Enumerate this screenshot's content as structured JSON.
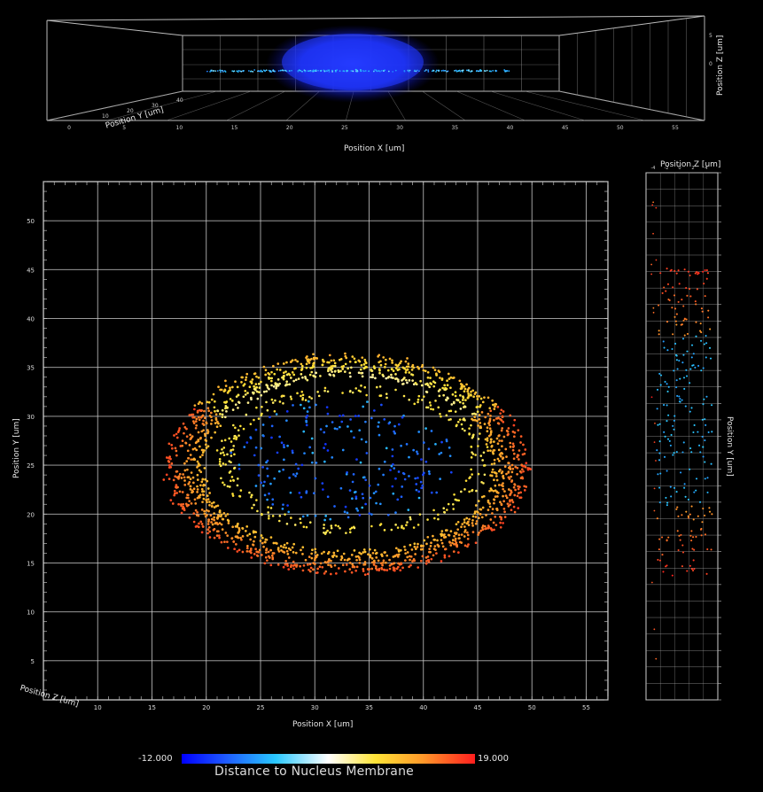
{
  "chart_data": [
    {
      "type": "scatter",
      "view": "xz-perspective",
      "xlabel": "Position X [um]",
      "ylabel": "Position Z [um]",
      "depth_label": "Position Y [um]",
      "x_ticks": [
        "0",
        "5",
        "10",
        "15",
        "20",
        "25",
        "30",
        "35",
        "40",
        "45",
        "50",
        "55"
      ],
      "z_ticks": [
        "5",
        "0"
      ],
      "y_depth_ticks": [
        "10",
        "20",
        "30",
        "40"
      ]
    },
    {
      "type": "scatter",
      "view": "xy-top",
      "xlabel": "Position X [um]",
      "ylabel": "Position Y [um]",
      "corner_label": "Position Z [um]",
      "xlim": [
        5,
        57
      ],
      "ylim": [
        1,
        54
      ],
      "x_ticks": [
        10,
        15,
        20,
        25,
        30,
        35,
        40,
        45,
        50,
        55
      ],
      "y_ticks": [
        5,
        10,
        15,
        20,
        25,
        30,
        35,
        40,
        45,
        50
      ],
      "grid": true,
      "nucleus": {
        "center_x": 33.5,
        "center_y": 25.5,
        "radius_x": 11.5,
        "radius_y": 7.0
      },
      "cell": {
        "center_x": 33.0,
        "center_y": 24.5,
        "radius_x": 16.5,
        "radius_y": 10.5
      }
    },
    {
      "type": "scatter",
      "view": "zy-side",
      "xlabel": "Position Z [um]",
      "ylabel": "Position Y [um]",
      "z_ticks": [
        "-4",
        "-2",
        "0",
        "2",
        "4"
      ]
    }
  ],
  "colorbar": {
    "min_label": "-12.000",
    "max_label": "19.000",
    "title": "Distance to Nucleus Membrane",
    "colors": [
      "#0000ff",
      "#1e5aff",
      "#29c8ff",
      "#ffffff",
      "#ffe437",
      "#ff9a2a",
      "#ff1e1e"
    ]
  }
}
